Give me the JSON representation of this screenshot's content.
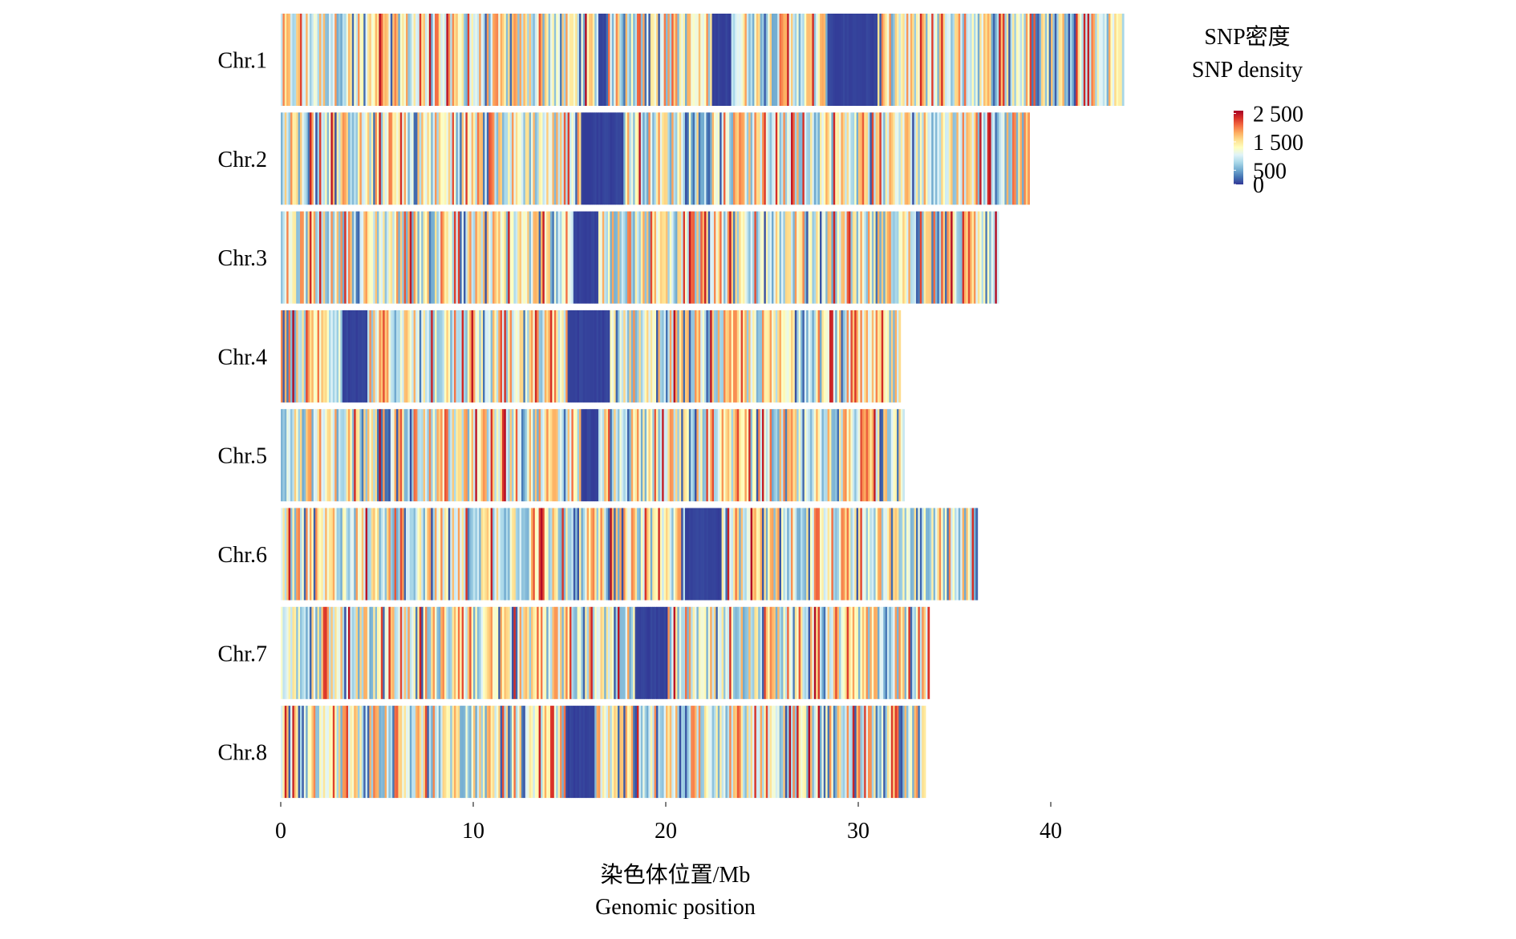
{
  "chart_data": {
    "type": "heatmap",
    "title": "",
    "xlabel": "染色体位置/Mb",
    "xlabel_en": "Genomic position",
    "xlim": [
      0,
      44
    ],
    "xticks": [
      0,
      10,
      20,
      30,
      40
    ],
    "bin_size_mb": 0.1,
    "legend": {
      "title": "SNP密度",
      "title_en": "SNP density",
      "ticks": [
        {
          "value": 2500,
          "label": "2 500"
        },
        {
          "value": 1500,
          "label": "1 500"
        },
        {
          "value": 500,
          "label": "500"
        },
        {
          "value": 0,
          "label": "0"
        }
      ],
      "range": [
        0,
        2600
      ],
      "placement": "top-right"
    },
    "color_scale": [
      "#313695",
      "#4575b4",
      "#74add1",
      "#abd9e9",
      "#e0f3f8",
      "#ffffbf",
      "#fee090",
      "#fdae61",
      "#f46d43",
      "#d73027",
      "#a50026"
    ],
    "chromosomes": [
      {
        "name": "Chr.1",
        "length": 43.8,
        "gaps": [
          [
            16.5,
            16.9
          ],
          [
            22.4,
            23.4
          ],
          [
            28.4,
            31.0
          ]
        ]
      },
      {
        "name": "Chr.2",
        "length": 38.9,
        "gaps": [
          [
            15.6,
            17.8
          ]
        ]
      },
      {
        "name": "Chr.3",
        "length": 37.3,
        "gaps": [
          [
            15.2,
            16.5
          ]
        ]
      },
      {
        "name": "Chr.4",
        "length": 32.2,
        "gaps": [
          [
            3.2,
            4.5
          ],
          [
            14.9,
            17.1
          ]
        ]
      },
      {
        "name": "Chr.5",
        "length": 32.4,
        "gaps": [
          [
            15.6,
            16.5
          ]
        ]
      },
      {
        "name": "Chr.6",
        "length": 36.2,
        "gaps": [
          [
            21.0,
            22.9
          ]
        ]
      },
      {
        "name": "Chr.7",
        "length": 33.7,
        "gaps": [
          [
            18.4,
            20.1
          ]
        ]
      },
      {
        "name": "Chr.8",
        "length": 33.5,
        "gaps": [
          [
            14.8,
            16.3
          ]
        ]
      }
    ]
  }
}
